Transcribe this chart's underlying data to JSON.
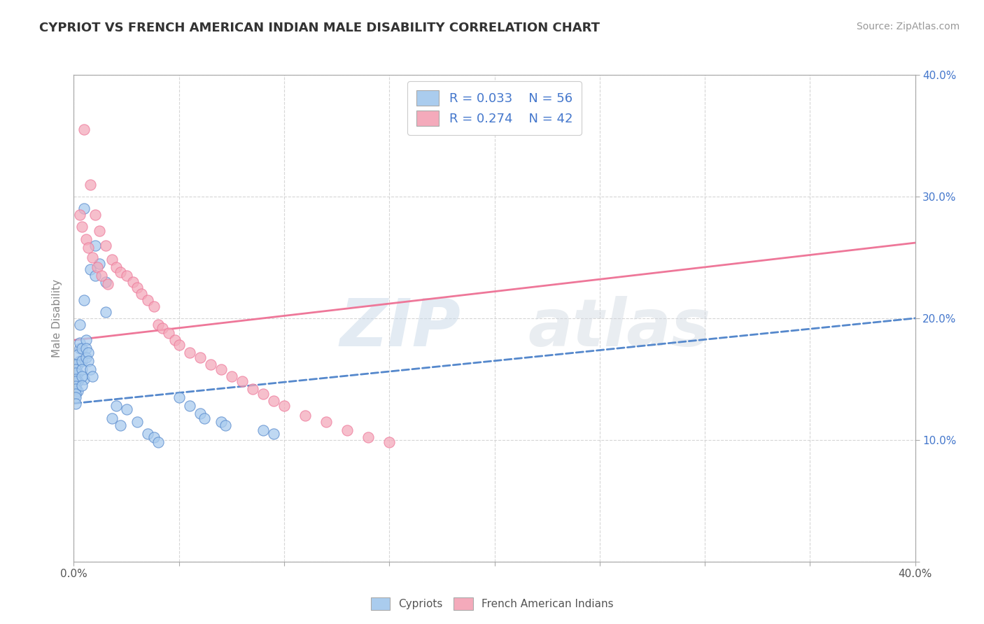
{
  "title": "CYPRIOT VS FRENCH AMERICAN INDIAN MALE DISABILITY CORRELATION CHART",
  "source": "Source: ZipAtlas.com",
  "ylabel": "Male Disability",
  "r_cypriot": 0.033,
  "n_cypriot": 56,
  "r_french": 0.274,
  "n_french": 42,
  "cypriot_color": "#aaccee",
  "french_color": "#f4aabb",
  "cypriot_line_color": "#5588cc",
  "french_line_color": "#ee7799",
  "legend_label_cypriot": "Cypriots",
  "legend_label_french": "French American Indians",
  "watermark_zip": "ZIP",
  "watermark_atlas": "atlas",
  "xlim": [
    0.0,
    0.4
  ],
  "ylim": [
    0.0,
    0.4
  ],
  "cypriot_x": [
    0.005,
    0.005,
    0.005,
    0.008,
    0.01,
    0.01,
    0.012,
    0.015,
    0.015,
    0.003,
    0.003,
    0.003,
    0.003,
    0.002,
    0.002,
    0.002,
    0.002,
    0.002,
    0.001,
    0.001,
    0.001,
    0.001,
    0.001,
    0.001,
    0.001,
    0.001,
    0.001,
    0.001,
    0.004,
    0.004,
    0.004,
    0.004,
    0.004,
    0.006,
    0.006,
    0.006,
    0.007,
    0.007,
    0.008,
    0.009,
    0.02,
    0.018,
    0.025,
    0.022,
    0.03,
    0.035,
    0.038,
    0.04,
    0.05,
    0.055,
    0.06,
    0.062,
    0.07,
    0.072,
    0.09,
    0.095
  ],
  "cypriot_y": [
    0.29,
    0.215,
    0.15,
    0.24,
    0.26,
    0.235,
    0.245,
    0.205,
    0.23,
    0.195,
    0.175,
    0.165,
    0.18,
    0.155,
    0.148,
    0.162,
    0.17,
    0.14,
    0.162,
    0.158,
    0.155,
    0.15,
    0.148,
    0.144,
    0.142,
    0.138,
    0.135,
    0.13,
    0.175,
    0.165,
    0.158,
    0.152,
    0.145,
    0.182,
    0.175,
    0.168,
    0.172,
    0.165,
    0.158,
    0.152,
    0.128,
    0.118,
    0.125,
    0.112,
    0.115,
    0.105,
    0.102,
    0.098,
    0.135,
    0.128,
    0.122,
    0.118,
    0.115,
    0.112,
    0.108,
    0.105
  ],
  "french_x": [
    0.005,
    0.008,
    0.01,
    0.012,
    0.015,
    0.018,
    0.02,
    0.022,
    0.025,
    0.028,
    0.03,
    0.032,
    0.035,
    0.038,
    0.04,
    0.042,
    0.045,
    0.048,
    0.05,
    0.055,
    0.06,
    0.065,
    0.07,
    0.075,
    0.08,
    0.085,
    0.09,
    0.095,
    0.1,
    0.11,
    0.12,
    0.13,
    0.14,
    0.15,
    0.003,
    0.004,
    0.006,
    0.007,
    0.009,
    0.011,
    0.013,
    0.016
  ],
  "french_y": [
    0.355,
    0.31,
    0.285,
    0.272,
    0.26,
    0.248,
    0.242,
    0.238,
    0.235,
    0.23,
    0.225,
    0.22,
    0.215,
    0.21,
    0.195,
    0.192,
    0.188,
    0.182,
    0.178,
    0.172,
    0.168,
    0.162,
    0.158,
    0.152,
    0.148,
    0.142,
    0.138,
    0.132,
    0.128,
    0.12,
    0.115,
    0.108,
    0.102,
    0.098,
    0.285,
    0.275,
    0.265,
    0.258,
    0.25,
    0.242,
    0.235,
    0.228
  ],
  "cypriot_trend": [
    0.13,
    0.2
  ],
  "french_trend": [
    0.182,
    0.262
  ]
}
